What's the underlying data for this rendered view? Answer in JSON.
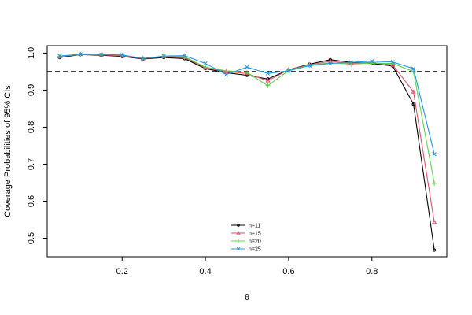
{
  "chart_data": {
    "type": "line",
    "title": "",
    "xlabel": "θ",
    "ylabel": "Coverage Probabilities of 95% CIs",
    "xlim": [
      0.02,
      0.98
    ],
    "ylim": [
      0.45,
      1.02
    ],
    "xticks": [
      0.2,
      0.4,
      0.6,
      0.8
    ],
    "xtick_labels": [
      "0.2",
      "0.4",
      "0.6",
      "0.8"
    ],
    "yticks": [
      0.5,
      0.6,
      0.7,
      0.8,
      0.9,
      1.0
    ],
    "ytick_labels": [
      "0.5",
      "0.6",
      "0.7",
      "0.8",
      "0.9",
      "1.0"
    ],
    "reference_line": 0.95,
    "grid": false,
    "legend_position": "bottom-center",
    "x": [
      0.05,
      0.1,
      0.15,
      0.2,
      0.25,
      0.3,
      0.35,
      0.4,
      0.45,
      0.5,
      0.55,
      0.6,
      0.65,
      0.7,
      0.75,
      0.8,
      0.85,
      0.9,
      0.95
    ],
    "series": [
      {
        "name": "n=11",
        "color": "#000000",
        "marker": "circle",
        "values": [
          0.988,
          0.996,
          0.994,
          0.991,
          0.984,
          0.988,
          0.985,
          0.958,
          0.947,
          0.94,
          0.93,
          0.955,
          0.97,
          0.982,
          0.975,
          0.972,
          0.965,
          0.862,
          0.468
        ]
      },
      {
        "name": "n=15",
        "color": "#df536b",
        "marker": "triangle",
        "values": [
          0.99,
          0.997,
          0.995,
          0.993,
          0.985,
          0.99,
          0.988,
          0.96,
          0.95,
          0.945,
          0.925,
          0.955,
          0.968,
          0.978,
          0.972,
          0.975,
          0.968,
          0.895,
          0.543
        ]
      },
      {
        "name": "n=20",
        "color": "#61d04f",
        "marker": "plus",
        "values": [
          0.991,
          0.996,
          0.996,
          0.995,
          0.986,
          0.991,
          0.99,
          0.962,
          0.952,
          0.948,
          0.912,
          0.953,
          0.967,
          0.974,
          0.97,
          0.973,
          0.972,
          0.95,
          0.648
        ]
      },
      {
        "name": "n=25",
        "color": "#2297e6",
        "marker": "cross",
        "values": [
          0.992,
          0.997,
          0.996,
          0.995,
          0.985,
          0.992,
          0.993,
          0.972,
          0.942,
          0.962,
          0.945,
          0.952,
          0.966,
          0.972,
          0.975,
          0.978,
          0.976,
          0.958,
          0.727
        ]
      }
    ]
  }
}
